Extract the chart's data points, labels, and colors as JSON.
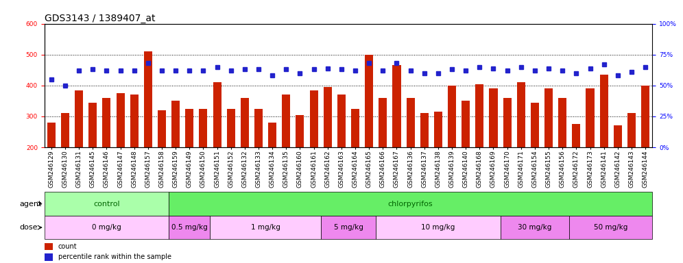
{
  "title": "GDS3143 / 1389407_at",
  "samples": [
    "GSM246129",
    "GSM246130",
    "GSM246131",
    "GSM246145",
    "GSM246146",
    "GSM246147",
    "GSM246148",
    "GSM246157",
    "GSM246158",
    "GSM246159",
    "GSM246149",
    "GSM246150",
    "GSM246151",
    "GSM246152",
    "GSM246132",
    "GSM246133",
    "GSM246134",
    "GSM246135",
    "GSM246160",
    "GSM246161",
    "GSM246162",
    "GSM246163",
    "GSM246164",
    "GSM246165",
    "GSM246166",
    "GSM246167",
    "GSM246136",
    "GSM246137",
    "GSM246138",
    "GSM246139",
    "GSM246140",
    "GSM246168",
    "GSM246169",
    "GSM246170",
    "GSM246171",
    "GSM246154",
    "GSM246155",
    "GSM246156",
    "GSM246172",
    "GSM246173",
    "GSM246141",
    "GSM246142",
    "GSM246143",
    "GSM246144"
  ],
  "counts": [
    280,
    310,
    385,
    345,
    360,
    375,
    370,
    510,
    320,
    350,
    325,
    325,
    410,
    325,
    360,
    325,
    280,
    370,
    305,
    385,
    395,
    370,
    325,
    500,
    360,
    465,
    360,
    310,
    315,
    400,
    350,
    405,
    390,
    360,
    410,
    345,
    390,
    360,
    275,
    390,
    435,
    270,
    310,
    400
  ],
  "percentiles": [
    55,
    50,
    62,
    63,
    62,
    62,
    62,
    68,
    62,
    62,
    62,
    62,
    65,
    62,
    63,
    63,
    58,
    63,
    60,
    63,
    64,
    63,
    62,
    68,
    62,
    68,
    62,
    60,
    60,
    63,
    62,
    65,
    64,
    62,
    65,
    62,
    64,
    62,
    60,
    64,
    67,
    58,
    61,
    65
  ],
  "agent_groups": [
    {
      "label": "control",
      "start": 0,
      "end": 9,
      "color": "#AAFFAA"
    },
    {
      "label": "chlorpyrifos",
      "start": 9,
      "end": 44,
      "color": "#66EE66"
    }
  ],
  "dose_groups": [
    {
      "label": "0 mg/kg",
      "start": 0,
      "end": 9,
      "color": "#FFCCFF"
    },
    {
      "label": "0.5 mg/kg",
      "start": 9,
      "end": 12,
      "color": "#EE88EE"
    },
    {
      "label": "1 mg/kg",
      "start": 12,
      "end": 20,
      "color": "#FFCCFF"
    },
    {
      "label": "5 mg/kg",
      "start": 20,
      "end": 24,
      "color": "#EE88EE"
    },
    {
      "label": "10 mg/kg",
      "start": 24,
      "end": 33,
      "color": "#FFCCFF"
    },
    {
      "label": "30 mg/kg",
      "start": 33,
      "end": 38,
      "color": "#EE88EE"
    },
    {
      "label": "50 mg/kg",
      "start": 38,
      "end": 44,
      "color": "#EE88EE"
    }
  ],
  "bar_color": "#CC2200",
  "dot_color": "#2222CC",
  "ylim_left": [
    200,
    600
  ],
  "ylim_right": [
    0,
    100
  ],
  "yticks_left": [
    200,
    300,
    400,
    500,
    600
  ],
  "yticks_right": [
    0,
    25,
    50,
    75,
    100
  ],
  "title_fontsize": 10,
  "tick_fontsize": 6.5,
  "label_fontsize": 8
}
